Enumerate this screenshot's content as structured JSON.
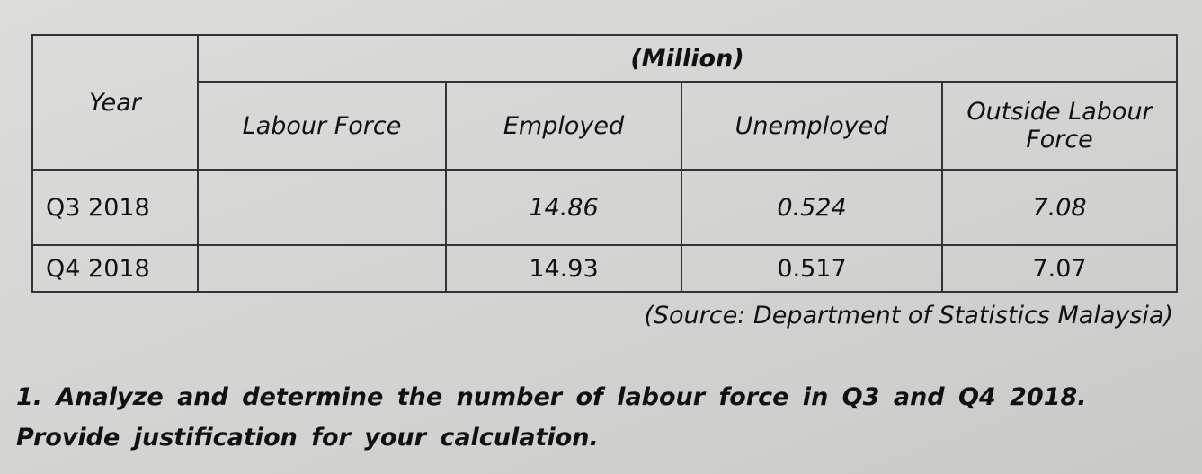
{
  "table": {
    "year_header": "Year",
    "unit_header": "(Million)",
    "columns": [
      "Labour Force",
      "Employed",
      "Unemployed",
      "Outside Labour Force"
    ],
    "rows": [
      {
        "year": "Q3 2018",
        "labour_force": "",
        "employed": "14.86",
        "unemployed": "0.524",
        "outside": "7.08"
      },
      {
        "year": "Q4 2018",
        "labour_force": "",
        "employed": "14.93",
        "unemployed": "0.517",
        "outside": "7.07"
      }
    ]
  },
  "source": "(Source: Department of Statistics Malaysia)",
  "question": "1. Analyze and determine the number of labour force in Q3 and Q4 2018. Provide justification for your calculation."
}
